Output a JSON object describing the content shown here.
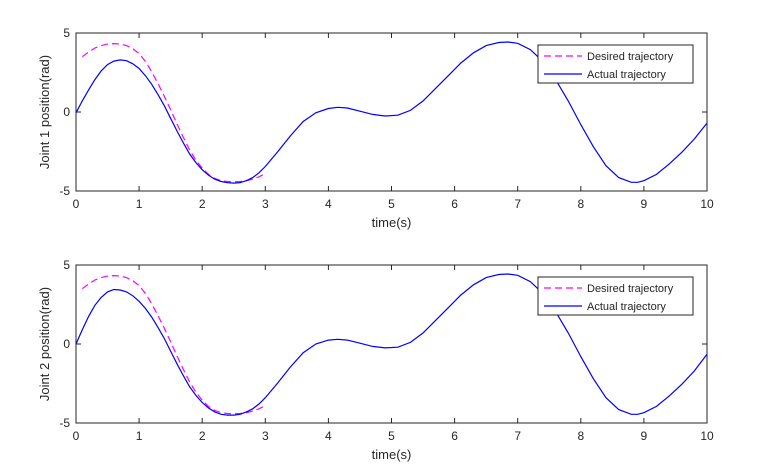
{
  "chart_data": [
    {
      "type": "line",
      "xlabel": "time(s)",
      "ylabel": "Joint 1 position(rad)",
      "xlim": [
        0,
        10
      ],
      "ylim": [
        -5,
        5
      ],
      "xticks": [
        "0",
        "1",
        "2",
        "3",
        "4",
        "5",
        "6",
        "7",
        "8",
        "9",
        "10"
      ],
      "yticks": [
        "-5",
        "0",
        "5"
      ],
      "grid": false,
      "legend_position": "top-right",
      "series": [
        {
          "name": "Desired trajectory",
          "color": "#ff00ff",
          "style": "dashed",
          "x": [
            0.1,
            0.2,
            0.3,
            0.4,
            0.5,
            0.6,
            0.7,
            0.8,
            0.9,
            1.0,
            1.1,
            1.2,
            1.3,
            1.4,
            1.5,
            1.6,
            1.7,
            1.8,
            1.9,
            2.0,
            2.1,
            2.2,
            2.3,
            2.4,
            2.5,
            2.6,
            2.7,
            2.8,
            2.9,
            3.0
          ],
          "y": [
            3.5,
            3.8,
            4.05,
            4.2,
            4.3,
            4.33,
            4.3,
            4.2,
            4.0,
            3.7,
            3.2,
            2.55,
            1.8,
            1.0,
            0.15,
            -0.75,
            -1.6,
            -2.4,
            -3.05,
            -3.55,
            -3.95,
            -4.2,
            -4.35,
            -4.4,
            -4.42,
            -4.4,
            -4.35,
            -4.25,
            -4.1,
            -3.9
          ]
        },
        {
          "name": "Actual trajectory",
          "color": "#0000ff",
          "style": "solid",
          "x": [
            0.0,
            0.1,
            0.2,
            0.3,
            0.4,
            0.5,
            0.6,
            0.7,
            0.8,
            0.9,
            1.0,
            1.1,
            1.2,
            1.3,
            1.4,
            1.5,
            1.6,
            1.7,
            1.8,
            1.9,
            2.0,
            2.1,
            2.2,
            2.3,
            2.4,
            2.5,
            2.6,
            2.7,
            2.8,
            2.9,
            3.0,
            3.2,
            3.4,
            3.6,
            3.8,
            4.0,
            4.15,
            4.3,
            4.5,
            4.7,
            4.9,
            5.1,
            5.3,
            5.5,
            5.7,
            5.9,
            6.1,
            6.3,
            6.5,
            6.7,
            6.85,
            7.0,
            7.2,
            7.4,
            7.6,
            7.8,
            8.0,
            8.2,
            8.4,
            8.6,
            8.8,
            8.9,
            9.0,
            9.2,
            9.4,
            9.6,
            9.8,
            10.0
          ],
          "y": [
            -0.05,
            0.7,
            1.4,
            2.05,
            2.6,
            3.0,
            3.22,
            3.3,
            3.25,
            3.05,
            2.75,
            2.3,
            1.75,
            1.1,
            0.4,
            -0.4,
            -1.2,
            -1.95,
            -2.65,
            -3.2,
            -3.65,
            -4.0,
            -4.25,
            -4.4,
            -4.47,
            -4.5,
            -4.47,
            -4.35,
            -4.15,
            -3.85,
            -3.45,
            -2.5,
            -1.5,
            -0.6,
            -0.05,
            0.22,
            0.3,
            0.25,
            0.05,
            -0.15,
            -0.25,
            -0.2,
            0.1,
            0.7,
            1.5,
            2.3,
            3.1,
            3.75,
            4.2,
            4.4,
            4.43,
            4.35,
            3.95,
            3.2,
            2.05,
            0.7,
            -0.8,
            -2.2,
            -3.4,
            -4.15,
            -4.45,
            -4.45,
            -4.35,
            -3.95,
            -3.3,
            -2.55,
            -1.7,
            -0.7
          ]
        }
      ]
    },
    {
      "type": "line",
      "xlabel": "time(s)",
      "ylabel": "Joint 2 position(rad)",
      "xlim": [
        0,
        10
      ],
      "ylim": [
        -5,
        5
      ],
      "xticks": [
        "0",
        "1",
        "2",
        "3",
        "4",
        "5",
        "6",
        "7",
        "8",
        "9",
        "10"
      ],
      "yticks": [
        "-5",
        "0",
        "5"
      ],
      "grid": false,
      "legend_position": "top-right",
      "series": [
        {
          "name": "Desired trajectory",
          "color": "#ff00ff",
          "style": "dashed",
          "x": [
            0.1,
            0.2,
            0.3,
            0.4,
            0.5,
            0.6,
            0.7,
            0.8,
            0.9,
            1.0,
            1.1,
            1.2,
            1.3,
            1.4,
            1.5,
            1.6,
            1.7,
            1.8,
            1.9,
            2.0,
            2.1,
            2.2,
            2.3,
            2.4,
            2.5,
            2.6,
            2.7,
            2.8,
            2.9,
            3.0
          ],
          "y": [
            3.5,
            3.8,
            4.05,
            4.2,
            4.3,
            4.33,
            4.3,
            4.2,
            4.0,
            3.7,
            3.2,
            2.55,
            1.8,
            1.0,
            0.15,
            -0.75,
            -1.6,
            -2.4,
            -3.05,
            -3.55,
            -3.95,
            -4.2,
            -4.35,
            -4.4,
            -4.42,
            -4.4,
            -4.35,
            -4.25,
            -4.1,
            -3.9
          ]
        },
        {
          "name": "Actual trajectory",
          "color": "#0000ff",
          "style": "solid",
          "x": [
            0.0,
            0.1,
            0.2,
            0.3,
            0.4,
            0.5,
            0.6,
            0.7,
            0.8,
            0.9,
            1.0,
            1.1,
            1.2,
            1.3,
            1.4,
            1.5,
            1.6,
            1.7,
            1.8,
            1.9,
            2.0,
            2.1,
            2.2,
            2.3,
            2.4,
            2.5,
            2.6,
            2.7,
            2.8,
            2.9,
            3.0,
            3.2,
            3.4,
            3.6,
            3.8,
            4.0,
            4.15,
            4.3,
            4.5,
            4.7,
            4.9,
            5.1,
            5.3,
            5.5,
            5.7,
            5.9,
            6.1,
            6.3,
            6.5,
            6.7,
            6.85,
            7.0,
            7.2,
            7.4,
            7.6,
            7.8,
            8.0,
            8.2,
            8.4,
            8.6,
            8.8,
            8.9,
            9.0,
            9.2,
            9.4,
            9.6,
            9.8,
            10.0
          ],
          "y": [
            0.0,
            0.9,
            1.75,
            2.45,
            2.95,
            3.3,
            3.45,
            3.42,
            3.3,
            3.05,
            2.7,
            2.25,
            1.7,
            1.05,
            0.35,
            -0.45,
            -1.25,
            -2.0,
            -2.7,
            -3.25,
            -3.7,
            -4.05,
            -4.3,
            -4.45,
            -4.5,
            -4.5,
            -4.45,
            -4.3,
            -4.1,
            -3.8,
            -3.4,
            -2.45,
            -1.45,
            -0.55,
            0.0,
            0.25,
            0.3,
            0.25,
            0.05,
            -0.15,
            -0.25,
            -0.2,
            0.1,
            0.7,
            1.5,
            2.3,
            3.1,
            3.75,
            4.2,
            4.4,
            4.43,
            4.35,
            3.95,
            3.2,
            2.05,
            0.7,
            -0.8,
            -2.2,
            -3.4,
            -4.15,
            -4.45,
            -4.45,
            -4.35,
            -3.95,
            -3.3,
            -2.55,
            -1.7,
            -0.65
          ]
        }
      ]
    }
  ]
}
